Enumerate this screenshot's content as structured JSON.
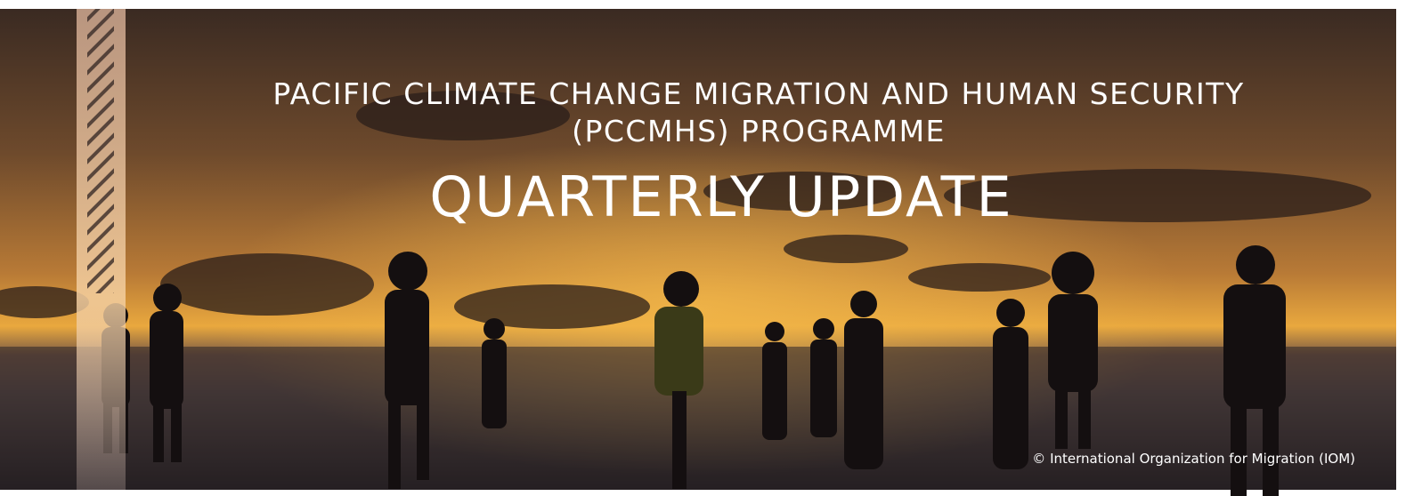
{
  "header": {
    "title_line1": "PACIFIC CLIMATE CHANGE MIGRATION AND HUMAN SECURITY",
    "title_line2": "(PCCMHS) PROGRAMME",
    "subtitle": "QUARTERLY UPDATE",
    "credit": "© International Organization for Migration (IOM)"
  }
}
